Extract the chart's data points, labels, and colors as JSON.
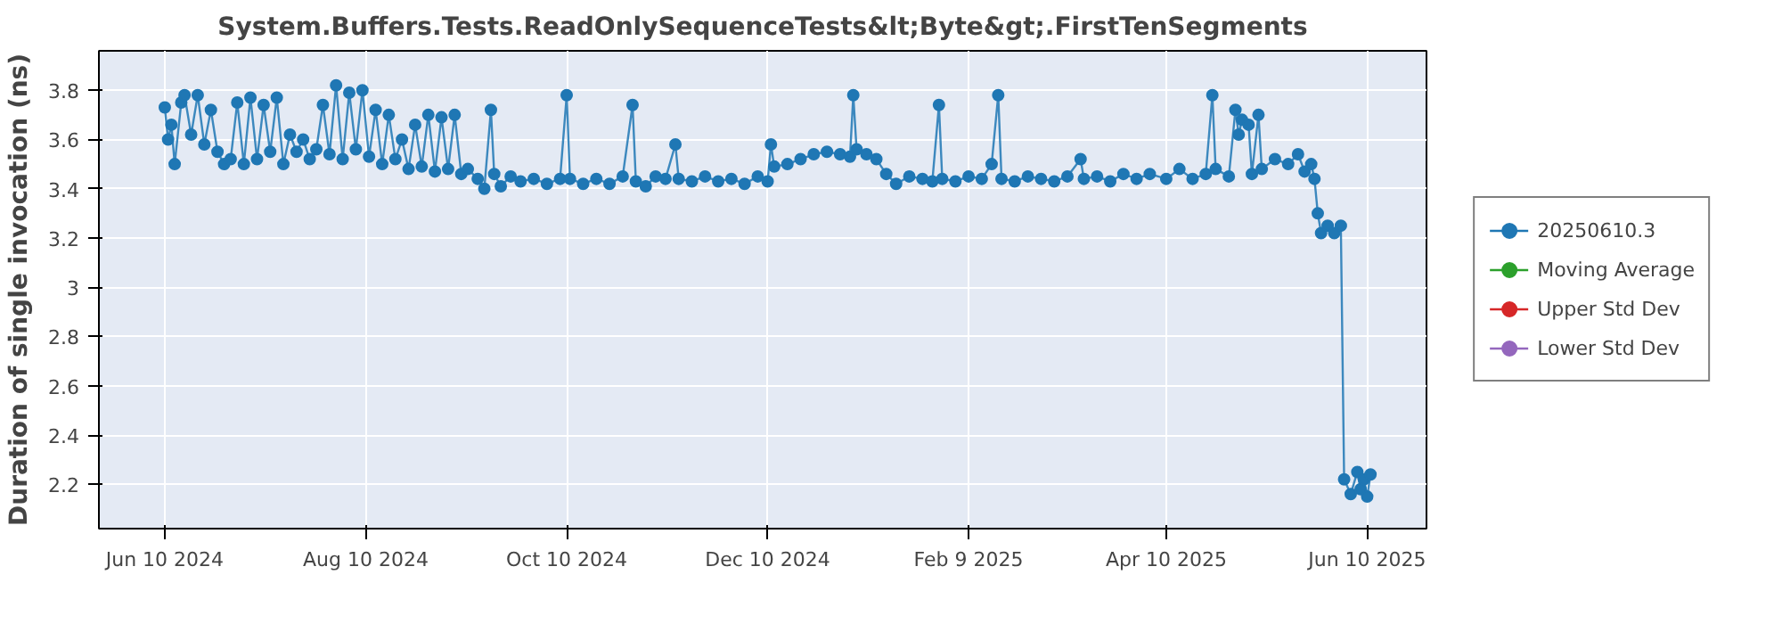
{
  "chart_data": {
    "type": "line",
    "title": "System.Buffers.Tests.ReadOnlySequenceTests&lt;Byte&gt;.FirstTenSegments",
    "ylabel": "Duration of single invocation (ns)",
    "xlim": [
      "2024-05-21",
      "2025-06-28"
    ],
    "ylim": [
      2.02,
      3.96
    ],
    "xticks": [
      {
        "value": "2024-06-10",
        "label": "Jun 10 2024"
      },
      {
        "value": "2024-08-10",
        "label": "Aug 10 2024"
      },
      {
        "value": "2024-10-10",
        "label": "Oct 10 2024"
      },
      {
        "value": "2024-12-10",
        "label": "Dec 10 2024"
      },
      {
        "value": "2025-02-09",
        "label": "Feb 9 2025"
      },
      {
        "value": "2025-04-10",
        "label": "Apr 10 2025"
      },
      {
        "value": "2025-06-10",
        "label": "Jun 10 2025"
      }
    ],
    "yticks": [
      2.2,
      2.4,
      2.6,
      2.8,
      3,
      3.2,
      3.4,
      3.6,
      3.8
    ],
    "grid": true,
    "legend": "right",
    "marker": "circle",
    "line_style": "solid",
    "series": [
      {
        "name": "20250610.3",
        "color": "#1f77b4",
        "x": [
          "2024-06-10",
          "2024-06-11",
          "2024-06-12",
          "2024-06-13",
          "2024-06-15",
          "2024-06-16",
          "2024-06-18",
          "2024-06-20",
          "2024-06-22",
          "2024-06-24",
          "2024-06-26",
          "2024-06-28",
          "2024-06-30",
          "2024-07-02",
          "2024-07-04",
          "2024-07-06",
          "2024-07-08",
          "2024-07-10",
          "2024-07-12",
          "2024-07-14",
          "2024-07-16",
          "2024-07-18",
          "2024-07-20",
          "2024-07-22",
          "2024-07-24",
          "2024-07-26",
          "2024-07-28",
          "2024-07-30",
          "2024-08-01",
          "2024-08-03",
          "2024-08-05",
          "2024-08-07",
          "2024-08-09",
          "2024-08-11",
          "2024-08-13",
          "2024-08-15",
          "2024-08-17",
          "2024-08-19",
          "2024-08-21",
          "2024-08-23",
          "2024-08-25",
          "2024-08-27",
          "2024-08-29",
          "2024-08-31",
          "2024-09-02",
          "2024-09-04",
          "2024-09-06",
          "2024-09-08",
          "2024-09-10",
          "2024-09-13",
          "2024-09-15",
          "2024-09-17",
          "2024-09-18",
          "2024-09-20",
          "2024-09-23",
          "2024-09-26",
          "2024-09-30",
          "2024-10-04",
          "2024-10-08",
          "2024-10-10",
          "2024-10-11",
          "2024-10-15",
          "2024-10-19",
          "2024-10-23",
          "2024-10-27",
          "2024-10-30",
          "2024-10-31",
          "2024-11-03",
          "2024-11-06",
          "2024-11-09",
          "2024-11-12",
          "2024-11-13",
          "2024-11-17",
          "2024-11-21",
          "2024-11-25",
          "2024-11-29",
          "2024-12-03",
          "2024-12-07",
          "2024-12-10",
          "2024-12-11",
          "2024-12-12",
          "2024-12-16",
          "2024-12-20",
          "2024-12-24",
          "2024-12-28",
          "2025-01-01",
          "2025-01-04",
          "2025-01-05",
          "2025-01-06",
          "2025-01-09",
          "2025-01-12",
          "2025-01-15",
          "2025-01-18",
          "2025-01-22",
          "2025-01-26",
          "2025-01-29",
          "2025-01-31",
          "2025-02-01",
          "2025-02-05",
          "2025-02-09",
          "2025-02-13",
          "2025-02-16",
          "2025-02-18",
          "2025-02-19",
          "2025-02-23",
          "2025-02-27",
          "2025-03-03",
          "2025-03-07",
          "2025-03-11",
          "2025-03-15",
          "2025-03-16",
          "2025-03-20",
          "2025-03-24",
          "2025-03-28",
          "2025-04-01",
          "2025-04-05",
          "2025-04-10",
          "2025-04-14",
          "2025-04-18",
          "2025-04-22",
          "2025-04-24",
          "2025-04-25",
          "2025-04-29",
          "2025-05-01",
          "2025-05-02",
          "2025-05-03",
          "2025-05-05",
          "2025-05-06",
          "2025-05-08",
          "2025-05-09",
          "2025-05-13",
          "2025-05-17",
          "2025-05-20",
          "2025-05-22",
          "2025-05-24",
          "2025-05-25",
          "2025-05-26",
          "2025-05-27",
          "2025-05-29",
          "2025-05-31",
          "2025-06-02",
          "2025-06-03",
          "2025-06-05",
          "2025-06-07",
          "2025-06-08",
          "2025-06-09",
          "2025-06-10",
          "2025-06-11"
        ],
        "values": [
          3.73,
          3.6,
          3.66,
          3.5,
          3.75,
          3.78,
          3.62,
          3.78,
          3.58,
          3.72,
          3.55,
          3.5,
          3.52,
          3.75,
          3.5,
          3.77,
          3.52,
          3.74,
          3.55,
          3.77,
          3.5,
          3.62,
          3.55,
          3.6,
          3.52,
          3.56,
          3.74,
          3.54,
          3.82,
          3.52,
          3.79,
          3.56,
          3.8,
          3.53,
          3.72,
          3.5,
          3.7,
          3.52,
          3.6,
          3.48,
          3.66,
          3.49,
          3.7,
          3.47,
          3.69,
          3.48,
          3.7,
          3.46,
          3.48,
          3.44,
          3.4,
          3.72,
          3.46,
          3.41,
          3.45,
          3.43,
          3.44,
          3.42,
          3.44,
          3.78,
          3.44,
          3.42,
          3.44,
          3.42,
          3.45,
          3.74,
          3.43,
          3.41,
          3.45,
          3.44,
          3.58,
          3.44,
          3.43,
          3.45,
          3.43,
          3.44,
          3.42,
          3.45,
          3.43,
          3.58,
          3.49,
          3.5,
          3.52,
          3.54,
          3.55,
          3.54,
          3.53,
          3.78,
          3.56,
          3.54,
          3.52,
          3.46,
          3.42,
          3.45,
          3.44,
          3.43,
          3.74,
          3.44,
          3.43,
          3.45,
          3.44,
          3.5,
          3.78,
          3.44,
          3.43,
          3.45,
          3.44,
          3.43,
          3.45,
          3.52,
          3.44,
          3.45,
          3.43,
          3.46,
          3.44,
          3.46,
          3.44,
          3.48,
          3.44,
          3.46,
          3.78,
          3.48,
          3.45,
          3.72,
          3.62,
          3.68,
          3.66,
          3.46,
          3.7,
          3.48,
          3.52,
          3.5,
          3.54,
          3.47,
          3.5,
          3.44,
          3.3,
          3.22,
          3.25,
          3.22,
          3.25,
          2.22,
          2.16,
          2.25,
          2.18,
          2.22,
          2.15,
          2.24
        ]
      },
      {
        "name": "Moving Average",
        "color": "#2ca02c"
      },
      {
        "name": "Upper Std Dev",
        "color": "#d62728"
      },
      {
        "name": "Lower Std Dev",
        "color": "#9467bd"
      }
    ]
  }
}
